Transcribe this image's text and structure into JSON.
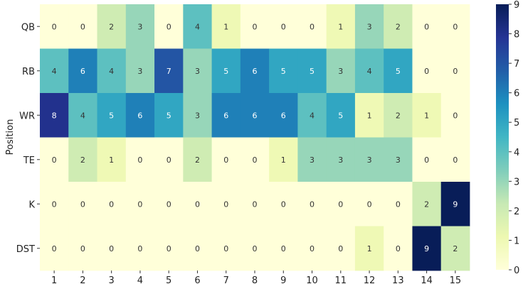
{
  "chart_data": {
    "type": "heatmap",
    "title": "",
    "xlabel": "",
    "ylabel": "Position",
    "x_categories": [
      "1",
      "2",
      "3",
      "4",
      "5",
      "6",
      "7",
      "8",
      "9",
      "10",
      "11",
      "12",
      "13",
      "14",
      "15"
    ],
    "y_categories": [
      "QB",
      "RB",
      "WR",
      "TE",
      "K",
      "DST"
    ],
    "values": [
      [
        0,
        0,
        2,
        3,
        0,
        4,
        1,
        0,
        0,
        0,
        1,
        3,
        2,
        0,
        0
      ],
      [
        4,
        6,
        4,
        3,
        7,
        3,
        5,
        6,
        5,
        5,
        3,
        4,
        5,
        0,
        0
      ],
      [
        8,
        4,
        5,
        6,
        5,
        3,
        6,
        6,
        6,
        4,
        5,
        1,
        2,
        1,
        0
      ],
      [
        0,
        2,
        1,
        0,
        0,
        2,
        0,
        0,
        1,
        3,
        3,
        3,
        3,
        0,
        0
      ],
      [
        0,
        0,
        0,
        0,
        0,
        0,
        0,
        0,
        0,
        0,
        0,
        0,
        0,
        2,
        9
      ],
      [
        0,
        0,
        0,
        0,
        0,
        0,
        0,
        0,
        0,
        0,
        0,
        1,
        0,
        9,
        2
      ]
    ],
    "vmin": 0,
    "vmax": 9,
    "colorbar_ticks": [
      "0",
      "1",
      "2",
      "3",
      "4",
      "5",
      "6",
      "7",
      "8",
      "9"
    ],
    "colormap": "YlGnBu",
    "grid": false,
    "annotations": true
  }
}
